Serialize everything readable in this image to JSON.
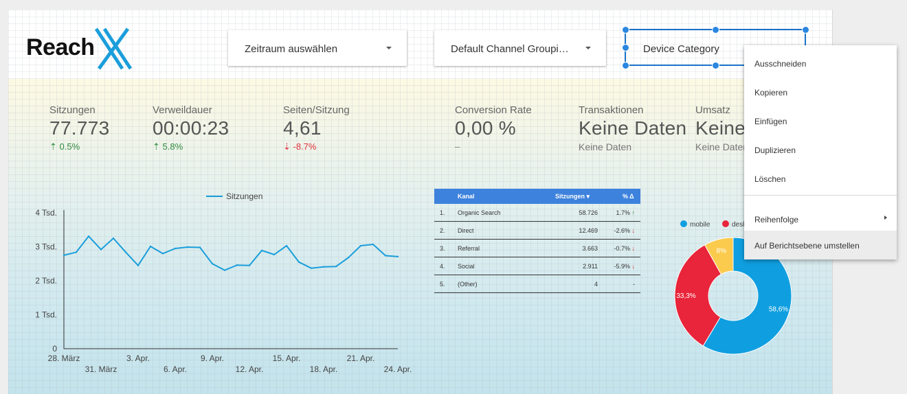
{
  "brand": {
    "name": "Reach"
  },
  "filters": {
    "date": "Zeitraum auswählen",
    "channel": "Default Channel Groupi…",
    "device": "Device Category"
  },
  "kpis": [
    {
      "label": "Sitzungen",
      "value": "77.773",
      "delta": "0.5%",
      "trend": "up"
    },
    {
      "label": "Verweildauer",
      "value": "00:00:23",
      "delta": "5.8%",
      "trend": "up"
    },
    {
      "label": "Seiten/Sitzung",
      "value": "4,61",
      "delta": "-8.7%",
      "trend": "down"
    },
    {
      "label": "Conversion Rate",
      "value": "0,00 %",
      "delta": "–",
      "trend": "none"
    },
    {
      "label": "Transaktionen",
      "value": "Keine Daten",
      "delta": "Keine Daten",
      "trend": "none"
    },
    {
      "label": "Umsatz",
      "value": "Keine",
      "delta": "Keine Daten",
      "trend": "none"
    }
  ],
  "chart_data": [
    {
      "type": "line",
      "legend": "Sitzungen",
      "ylim": [
        0,
        4000
      ],
      "yticks": [
        "0",
        "1 Tsd.",
        "2 Tsd.",
        "3 Tsd.",
        "4 Tsd."
      ],
      "xticks_row1": [
        "28. März",
        "3. Apr.",
        "9. Apr.",
        "15. Apr.",
        "21. Apr."
      ],
      "xticks_row2": [
        "31. März",
        "6. Apr.",
        "12. Apr.",
        "18. Apr.",
        "24. Apr."
      ],
      "x": [
        "28.03",
        "29.03",
        "30.03",
        "31.03",
        "01.04",
        "02.04",
        "03.04",
        "04.04",
        "05.04",
        "06.04",
        "07.04",
        "08.04",
        "09.04",
        "10.04",
        "11.04",
        "12.04",
        "13.04",
        "14.04",
        "15.04",
        "16.04",
        "17.04",
        "18.04",
        "19.04",
        "20.04",
        "21.04",
        "22.04",
        "23.04",
        "24.04"
      ],
      "values": [
        2750,
        2840,
        3310,
        2920,
        3250,
        2840,
        2450,
        3010,
        2800,
        2950,
        2990,
        2980,
        2500,
        2310,
        2460,
        2450,
        2890,
        2770,
        3030,
        2550,
        2370,
        2410,
        2420,
        2680,
        3030,
        3070,
        2740,
        2710
      ],
      "color": "#1a9edb"
    },
    {
      "type": "table",
      "columns": [
        "Kanal",
        "Sitzungen",
        "% Δ"
      ],
      "rows": [
        {
          "n": "1.",
          "kanal": "Organic Search",
          "sitzungen": "58.726",
          "delta": "1.7%",
          "trend": "up"
        },
        {
          "n": "2.",
          "kanal": "Direct",
          "sitzungen": "12.469",
          "delta": "-2.6%",
          "trend": "down"
        },
        {
          "n": "3.",
          "kanal": "Referral",
          "sitzungen": "3.663",
          "delta": "-0.7%",
          "trend": "down"
        },
        {
          "n": "4.",
          "kanal": "Social",
          "sitzungen": "2.911",
          "delta": "-5.9%",
          "trend": "down"
        },
        {
          "n": "5.",
          "kanal": "(Other)",
          "sitzungen": "4",
          "delta": "-",
          "trend": "none"
        }
      ]
    },
    {
      "type": "pie",
      "legend": [
        "mobile",
        "desktop"
      ],
      "slices": [
        {
          "label": "58,6%",
          "value": 58.6,
          "color": "#0f9fe0"
        },
        {
          "label": "33,3%",
          "value": 33.3,
          "color": "#e8253a"
        },
        {
          "label": "8%",
          "value": 8.1,
          "color": "#fbcb4e"
        }
      ]
    }
  ],
  "context_menu": {
    "items": [
      "Ausschneiden",
      "Kopieren",
      "Einfügen",
      "Duplizieren",
      "Löschen"
    ],
    "order": "Reihenfolge",
    "report_level": "Auf Berichtsebene umstellen"
  }
}
